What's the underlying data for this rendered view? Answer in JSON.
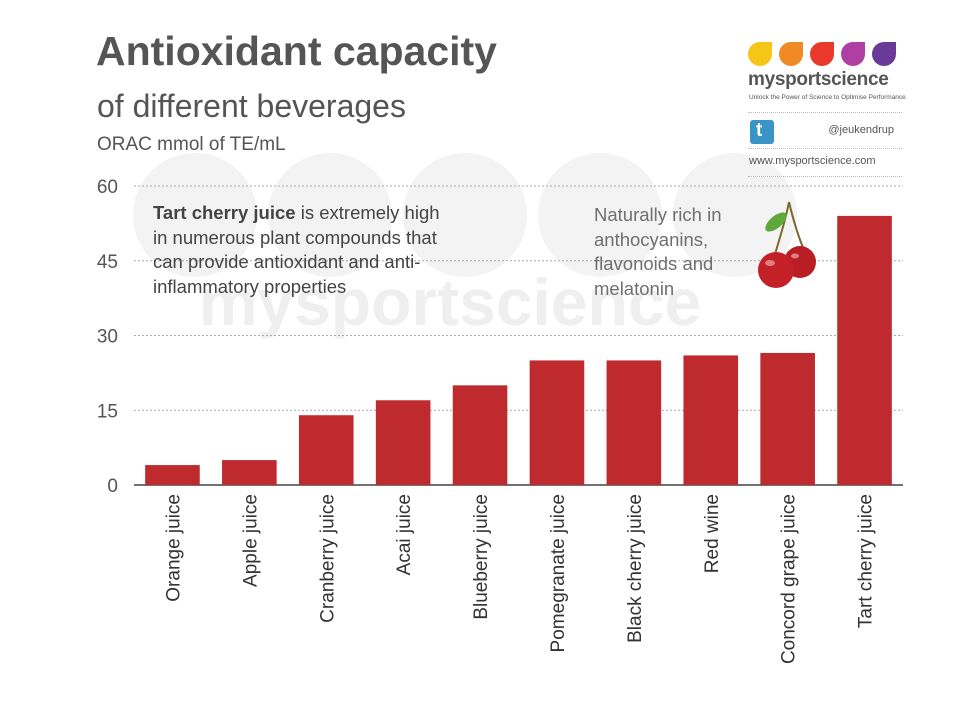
{
  "header": {
    "title": "Antioxidant capacity",
    "subtitle": "of different beverages",
    "unit_label": "ORAC mmol of TE/mL"
  },
  "brand": {
    "name": "mysportscience",
    "tagline": "Unlock the Power of Science to Optimise Performance",
    "twitter_icon": "twitter-icon",
    "twitter_handle": "@jeukendrup",
    "website": "www.mysportscience.com",
    "drop_colors": [
      "#f5c518",
      "#f08a24",
      "#e8392a",
      "#b03fa3",
      "#6a3a97"
    ],
    "watermark": "mysportscience"
  },
  "annotations": {
    "note1_bold": "Tart cherry juice",
    "note1_rest": " is extremely high in numerous plant compounds that can provide antioxidant and anti-inflammatory properties",
    "note2": "Naturally rich in anthocyanins, flavonoids and melatonin",
    "note2_icon": "cherries-icon"
  },
  "colors": {
    "bar": "#be2a2e",
    "text": "#555555",
    "grid": "#aaaaaa"
  },
  "chart_data": {
    "type": "bar",
    "categories": [
      "Orange juice",
      "Apple juice",
      "Cranberry juice",
      "Acai juice",
      "Blueberry juice",
      "Pomegranate juice",
      "Black cherry juice",
      "Red wine",
      "Concord grape juice",
      "Tart cherry juice"
    ],
    "values": [
      4,
      5,
      14,
      17,
      20,
      25,
      25,
      26,
      26.5,
      54
    ],
    "title": "Antioxidant capacity",
    "subtitle": "of different beverages",
    "ylabel": "ORAC mmol of TE/mL",
    "xlabel": "",
    "ylim": [
      0,
      60
    ],
    "yticks": [
      0,
      15,
      30,
      45,
      60
    ],
    "grid": true,
    "legend": "none"
  }
}
